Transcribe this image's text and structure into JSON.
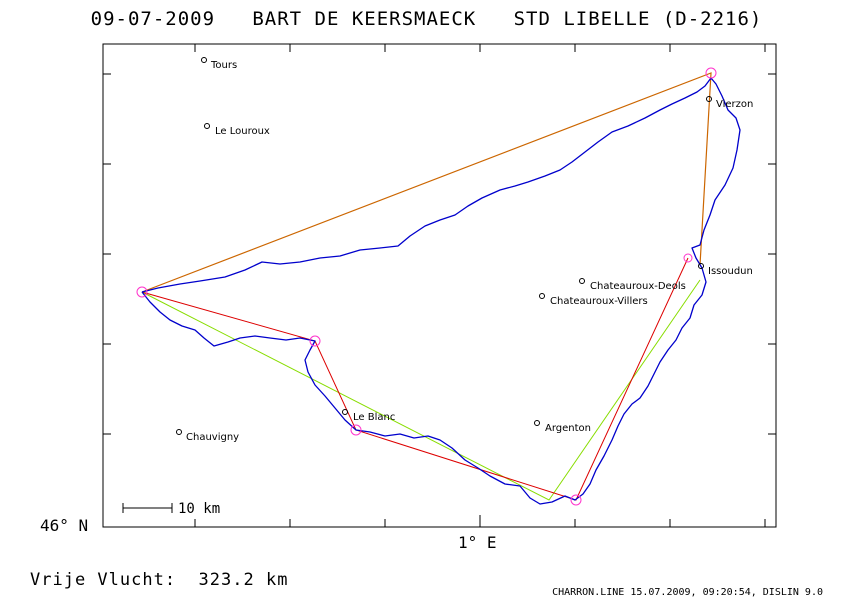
{
  "header": {
    "date": "09-07-2009",
    "pilot": "BART DE KEERSMAECK",
    "glider": "STD LIBELLE (D-2216)"
  },
  "map": {
    "lat_label": "46° N",
    "lon_label": "1° E",
    "scale_label": "10 km",
    "towns": [
      {
        "name": "Tours"
      },
      {
        "name": "Le Louroux"
      },
      {
        "name": "Vierzon"
      },
      {
        "name": "Issoudun"
      },
      {
        "name": "Chateauroux-Deols"
      },
      {
        "name": "Chateauroux-Villers"
      },
      {
        "name": "Le Blanc"
      },
      {
        "name": "Argenton"
      },
      {
        "name": "Chauvigny"
      }
    ],
    "colors": {
      "track": "#0000cc",
      "task_outer": "#cc6600",
      "task_red": "#dd0000",
      "task_green": "#88dd00",
      "turnpoint": "#ff33cc"
    }
  },
  "footer": {
    "distance_label": "Vrije Vlucht:",
    "distance_value": "323.2 km",
    "stamp": "CHARRON.LINE 15.07.2009, 09:20:54, DISLIN 9.0"
  }
}
